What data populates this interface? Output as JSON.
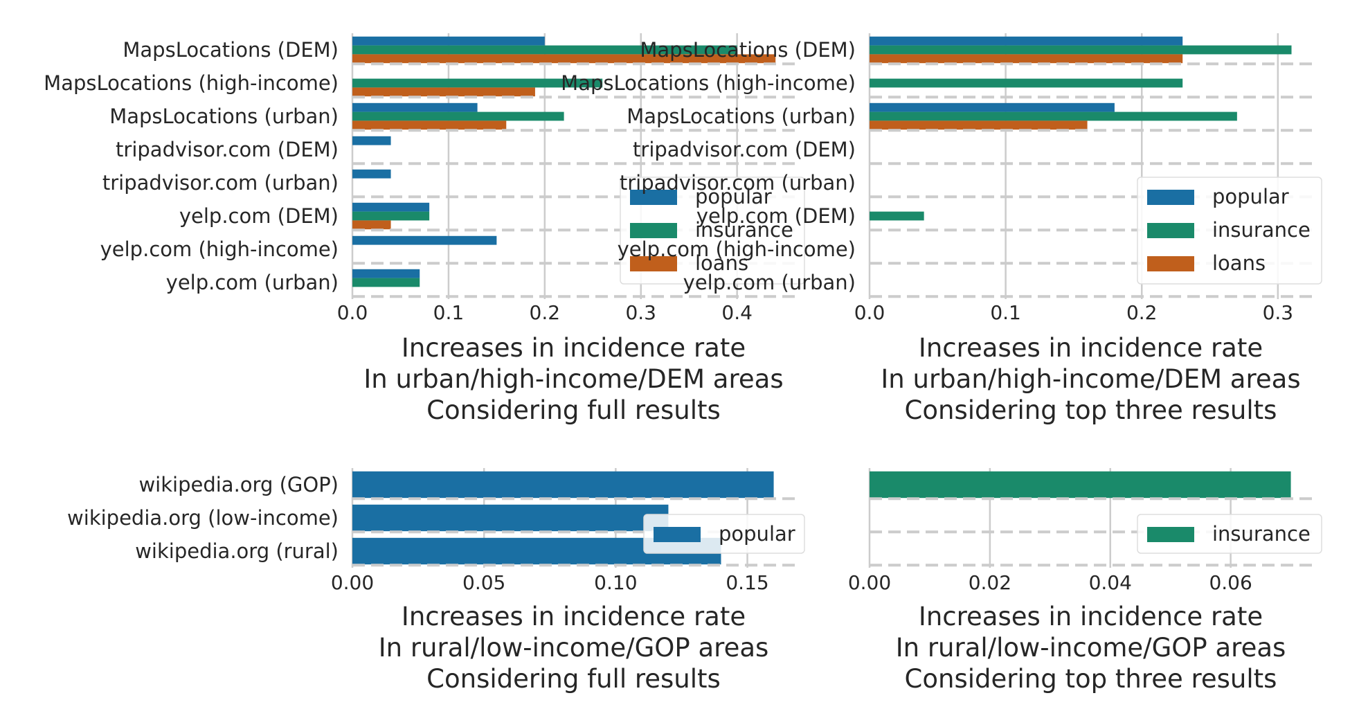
{
  "colors": {
    "popular": "#1a6fa3",
    "insurance": "#1a8a6a",
    "loans": "#c05f1c",
    "grid": "#cccccc",
    "text": "#262626"
  },
  "chart_data": [
    {
      "type": "bar",
      "orientation": "horizontal",
      "categories": [
        "MapsLocations (DEM)",
        "MapsLocations (high-income)",
        "MapsLocations (urban)",
        "tripadvisor.com (DEM)",
        "tripadvisor.com (urban)",
        "yelp.com (DEM)",
        "yelp.com (high-income)",
        "yelp.com (urban)"
      ],
      "series": [
        {
          "name": "popular",
          "values": [
            0.2,
            0,
            0.13,
            0.04,
            0.04,
            0.08,
            0.15,
            0.07
          ]
        },
        {
          "name": "insurance",
          "values": [
            0.4,
            0.26,
            0.22,
            0,
            0,
            0.08,
            0,
            0.07
          ]
        },
        {
          "name": "loans",
          "values": [
            0.44,
            0.19,
            0.16,
            0,
            0,
            0.04,
            0,
            0
          ]
        }
      ],
      "xlabel": [
        "Increases in incidence rate",
        "In urban/high-income/DEM areas",
        "Considering full results"
      ],
      "xlim": [
        0,
        0.46
      ],
      "xticks": [
        "0.0",
        "0.1",
        "0.2",
        "0.3",
        "0.4"
      ],
      "legend": "center-right",
      "grid": true
    },
    {
      "type": "bar",
      "orientation": "horizontal",
      "categories": [
        "MapsLocations (DEM)",
        "MapsLocations (high-income)",
        "MapsLocations (urban)",
        "tripadvisor.com (DEM)",
        "tripadvisor.com (urban)",
        "yelp.com (DEM)",
        "yelp.com (high-income)",
        "yelp.com (urban)"
      ],
      "series": [
        {
          "name": "popular",
          "values": [
            0.23,
            0,
            0.18,
            0,
            0,
            0,
            0,
            0
          ]
        },
        {
          "name": "insurance",
          "values": [
            0.31,
            0.23,
            0.27,
            0,
            0,
            0.04,
            0,
            0
          ]
        },
        {
          "name": "loans",
          "values": [
            0.23,
            0,
            0.16,
            0,
            0,
            0,
            0,
            0
          ]
        }
      ],
      "xlabel": [
        "Increases in incidence rate",
        "In urban/high-income/DEM areas",
        "Considering top three results"
      ],
      "xlim": [
        0,
        0.325
      ],
      "xticks": [
        "0.0",
        "0.1",
        "0.2",
        "0.3"
      ],
      "legend": "center-right",
      "grid": true
    },
    {
      "type": "bar",
      "orientation": "horizontal",
      "categories": [
        "wikipedia.org (GOP)",
        "wikipedia.org (low-income)",
        "wikipedia.org (rural)"
      ],
      "series": [
        {
          "name": "popular",
          "values": [
            0.16,
            0.12,
            0.14
          ]
        }
      ],
      "xlabel": [
        "Increases in incidence rate",
        "In rural/low-income/GOP areas",
        "Considering full results"
      ],
      "xlim": [
        0,
        0.168
      ],
      "xticks": [
        "0.00",
        "0.05",
        "0.10",
        "0.15"
      ],
      "legend": "center-right",
      "grid": true
    },
    {
      "type": "bar",
      "orientation": "horizontal",
      "categories": [
        "",
        "",
        ""
      ],
      "series": [
        {
          "name": "insurance",
          "values": [
            0.07,
            0,
            0
          ]
        }
      ],
      "xlabel": [
        "Increases in incidence rate",
        "In rural/low-income/GOP areas",
        "Considering top three results"
      ],
      "xlim": [
        0,
        0.0735
      ],
      "xticks": [
        "0.00",
        "0.02",
        "0.04",
        "0.06"
      ],
      "legend": "center-right",
      "grid": true
    }
  ]
}
